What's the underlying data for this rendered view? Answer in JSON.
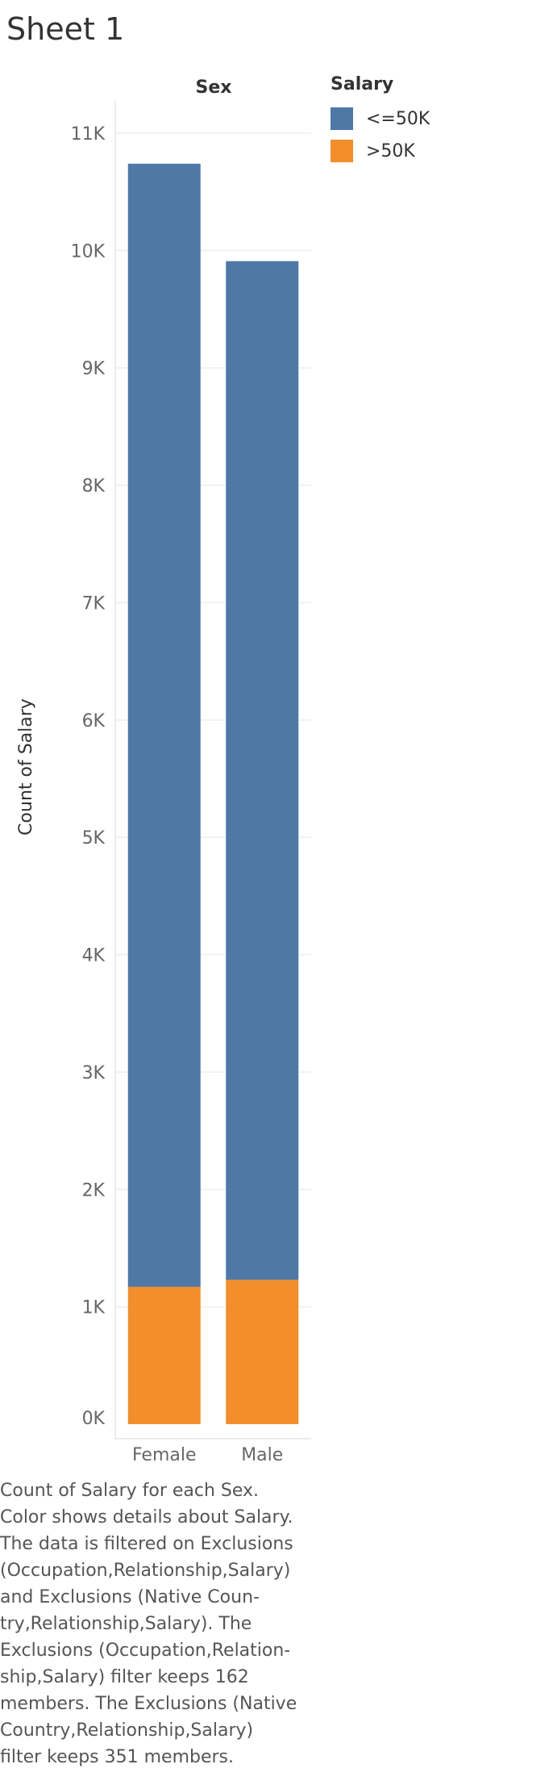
{
  "sheet_title": "Sheet 1",
  "legend": {
    "title": "Salary",
    "items": [
      {
        "label": "<=50K",
        "color": "#4e79a7"
      },
      {
        "label": ">50K",
        "color": "#f28e2b"
      }
    ]
  },
  "caption": "Count of Salary for each Sex.\nColor shows details about Salary.\nThe data is filtered on Exclusions\n(Occupation,Relationship,Salary)\nand Exclusions (Native Coun-\ntry,Relationship,Salary). The\nExclusions (Occupation,Relation-\nship,Salary) filter keeps 162\nmembers. The Exclusions (Native\nCountry,Relationship,Salary)\nfilter keeps 351 members.",
  "chart_data": {
    "type": "bar",
    "stacked": true,
    "column_header": "Sex",
    "ylabel": "Count of Salary",
    "categories": [
      "Female",
      "Male"
    ],
    "series": [
      {
        "name": ">50K",
        "color": "#f28e2b",
        "values": [
          1170,
          1230
        ]
      },
      {
        "name": "<=50K",
        "color": "#4e79a7",
        "values": [
          9570,
          8680
        ]
      }
    ],
    "totals": [
      10740,
      9910
    ],
    "ylim": [
      0,
      11000
    ],
    "yticks": [
      0,
      1000,
      2000,
      3000,
      4000,
      5000,
      6000,
      7000,
      8000,
      9000,
      10000,
      11000
    ],
    "ytick_labels": [
      "0K",
      "1K",
      "2K",
      "3K",
      "4K",
      "5K",
      "6K",
      "7K",
      "8K",
      "9K",
      "10K",
      "11K"
    ],
    "grid": true,
    "legend_position": "top-right"
  }
}
